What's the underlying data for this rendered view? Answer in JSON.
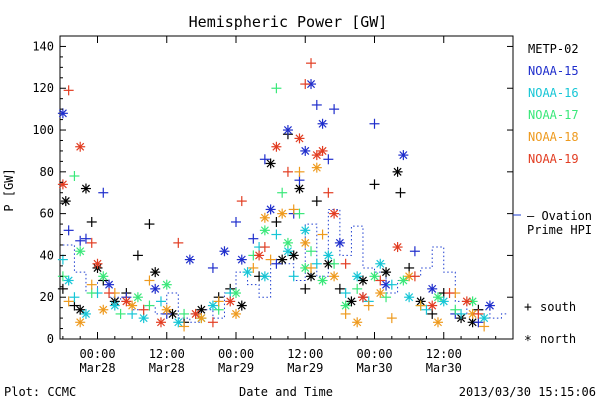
{
  "chart_data": {
    "type": "scatter",
    "title": "Hemispheric Power [GW]",
    "xlabel": "Date and Time",
    "ylabel": "P [GW]",
    "x_unit": "hours relative to 2013-03-28 00:00 UT",
    "xlim": [
      -6.5,
      72
    ],
    "ylim": [
      0,
      145
    ],
    "y_ticks": [
      0,
      20,
      40,
      60,
      80,
      100,
      120,
      140
    ],
    "x_ticks": [
      {
        "x": 0,
        "line1": "00:00",
        "line2": "Mar28"
      },
      {
        "x": 12,
        "line1": "12:00",
        "line2": "Mar28"
      },
      {
        "x": 24,
        "line1": "00:00",
        "line2": "Mar29"
      },
      {
        "x": 36,
        "line1": "12:00",
        "line2": "Mar29"
      },
      {
        "x": 48,
        "line1": "00:00",
        "line2": "Mar30"
      },
      {
        "x": 60,
        "line1": "12:00",
        "line2": "Mar30"
      }
    ],
    "legend": {
      "placement": "right",
      "satellites": [
        {
          "name": "METP-02",
          "color": "#000000"
        },
        {
          "name": "NOAA-15",
          "color": "#1f2ecc"
        },
        {
          "name": "NOAA-16",
          "color": "#17c6d6"
        },
        {
          "name": "NOAA-17",
          "color": "#3ae87a"
        },
        {
          "name": "NOAA-18",
          "color": "#ee9a1e"
        },
        {
          "name": "NOAA-19",
          "color": "#e23d22"
        }
      ],
      "ovation_line1": "— Ovation",
      "ovation_line2": "Prime HPI",
      "ovation_color": "#1f3fd0",
      "south_label": "south",
      "north_label": "north"
    },
    "ovation": {
      "x": [
        -6,
        -4,
        -2,
        0,
        2,
        4,
        6,
        8,
        10,
        12,
        14,
        16,
        18,
        20,
        22,
        24,
        26,
        28,
        30,
        32,
        34,
        36,
        38,
        40,
        42,
        44,
        46,
        48,
        50,
        52,
        54,
        56,
        58,
        60,
        62,
        64,
        66,
        68,
        70
      ],
      "y": [
        45,
        32,
        22,
        28,
        20,
        18,
        14,
        16,
        12,
        22,
        10,
        8,
        14,
        10,
        22,
        32,
        26,
        20,
        38,
        36,
        28,
        55,
        30,
        62,
        40,
        54,
        34,
        32,
        22,
        28,
        30,
        34,
        44,
        32,
        18,
        12,
        14,
        10,
        12
      ]
    },
    "series": [
      {
        "name": "METP-02",
        "color": "#000000",
        "points": [
          [
            -6,
            24,
            "s"
          ],
          [
            -5.5,
            66,
            "n"
          ],
          [
            -4,
            16,
            "s"
          ],
          [
            -3,
            14,
            "n"
          ],
          [
            -2,
            72,
            "n"
          ],
          [
            -1,
            56,
            "s"
          ],
          [
            0,
            34,
            "n"
          ],
          [
            1,
            28,
            "s"
          ],
          [
            3,
            18,
            "n"
          ],
          [
            5,
            22,
            "s"
          ],
          [
            7,
            40,
            "s"
          ],
          [
            9,
            55,
            "s"
          ],
          [
            10,
            32,
            "n"
          ],
          [
            13,
            12,
            "n"
          ],
          [
            15,
            8,
            "s"
          ],
          [
            18,
            14,
            "n"
          ],
          [
            21,
            20,
            "s"
          ],
          [
            23,
            24,
            "s"
          ],
          [
            25,
            16,
            "n"
          ],
          [
            28,
            30,
            "s"
          ],
          [
            30,
            84,
            "n"
          ],
          [
            31,
            56,
            "s"
          ],
          [
            32,
            38,
            "n"
          ],
          [
            33,
            98,
            "s"
          ],
          [
            34,
            40,
            "n"
          ],
          [
            35,
            72,
            "n"
          ],
          [
            36,
            24,
            "s"
          ],
          [
            37,
            30,
            "n"
          ],
          [
            38,
            66,
            "s"
          ],
          [
            40,
            36,
            "n"
          ],
          [
            42,
            24,
            "s"
          ],
          [
            44,
            18,
            "n"
          ],
          [
            46,
            28,
            "n"
          ],
          [
            48,
            74,
            "s"
          ],
          [
            50,
            32,
            "n"
          ],
          [
            52,
            80,
            "n"
          ],
          [
            52.5,
            70,
            "s"
          ],
          [
            54,
            34,
            "s"
          ],
          [
            56,
            18,
            "n"
          ],
          [
            58,
            12,
            "s"
          ],
          [
            60,
            22,
            "s"
          ],
          [
            63,
            10,
            "n"
          ],
          [
            65,
            8,
            "n"
          ],
          [
            66,
            14,
            "s"
          ]
        ]
      },
      {
        "name": "NOAA-15",
        "color": "#1f2ecc",
        "points": [
          [
            -6,
            108,
            "n"
          ],
          [
            -5,
            52,
            "s"
          ],
          [
            -3,
            47,
            "s"
          ],
          [
            -2,
            48,
            "s"
          ],
          [
            1,
            70,
            "s"
          ],
          [
            2,
            26,
            "n"
          ],
          [
            5,
            20,
            "s"
          ],
          [
            10,
            24,
            "n"
          ],
          [
            12,
            12,
            "s"
          ],
          [
            16,
            38,
            "n"
          ],
          [
            20,
            34,
            "s"
          ],
          [
            22,
            42,
            "n"
          ],
          [
            24,
            56,
            "s"
          ],
          [
            25,
            38,
            "n"
          ],
          [
            27,
            48,
            "s"
          ],
          [
            29,
            86,
            "s"
          ],
          [
            30,
            62,
            "n"
          ],
          [
            31,
            36,
            "s"
          ],
          [
            33,
            100,
            "n"
          ],
          [
            34,
            60,
            "s"
          ],
          [
            35,
            76,
            "s"
          ],
          [
            36,
            90,
            "n"
          ],
          [
            37,
            122,
            "n"
          ],
          [
            38,
            112,
            "s"
          ],
          [
            39,
            103,
            "n"
          ],
          [
            40,
            86,
            "s"
          ],
          [
            41,
            110,
            "s"
          ],
          [
            42,
            46,
            "n"
          ],
          [
            46,
            20,
            "s"
          ],
          [
            48,
            103,
            "s"
          ],
          [
            50,
            26,
            "n"
          ],
          [
            53,
            88,
            "n"
          ],
          [
            55,
            42,
            "s"
          ],
          [
            58,
            24,
            "n"
          ],
          [
            62,
            12,
            "s"
          ],
          [
            66,
            8,
            "s"
          ],
          [
            68,
            16,
            "n"
          ]
        ]
      },
      {
        "name": "NOAA-16",
        "color": "#17c6d6",
        "points": [
          [
            -6,
            38,
            "s"
          ],
          [
            -5,
            28,
            "n"
          ],
          [
            -4,
            20,
            "s"
          ],
          [
            -2,
            12,
            "n"
          ],
          [
            0,
            22,
            "s"
          ],
          [
            3,
            16,
            "n"
          ],
          [
            6,
            12,
            "s"
          ],
          [
            8,
            10,
            "n"
          ],
          [
            11,
            18,
            "s"
          ],
          [
            14,
            8,
            "n"
          ],
          [
            17,
            12,
            "s"
          ],
          [
            20,
            16,
            "n"
          ],
          [
            23,
            22,
            "s"
          ],
          [
            26,
            32,
            "n"
          ],
          [
            28,
            44,
            "s"
          ],
          [
            29,
            30,
            "n"
          ],
          [
            31,
            50,
            "s"
          ],
          [
            33,
            42,
            "n"
          ],
          [
            34,
            30,
            "s"
          ],
          [
            36,
            52,
            "n"
          ],
          [
            38,
            36,
            "s"
          ],
          [
            40,
            40,
            "n"
          ],
          [
            43,
            22,
            "s"
          ],
          [
            45,
            30,
            "n"
          ],
          [
            47,
            18,
            "s"
          ],
          [
            49,
            36,
            "n"
          ],
          [
            51,
            26,
            "s"
          ],
          [
            54,
            20,
            "n"
          ],
          [
            57,
            14,
            "s"
          ],
          [
            60,
            18,
            "n"
          ],
          [
            63,
            12,
            "s"
          ],
          [
            67,
            10,
            "n"
          ]
        ]
      },
      {
        "name": "NOAA-17",
        "color": "#3ae87a",
        "points": [
          [
            -6,
            30,
            "s"
          ],
          [
            -4,
            78,
            "s"
          ],
          [
            -3,
            42,
            "n"
          ],
          [
            -1,
            22,
            "s"
          ],
          [
            1,
            30,
            "n"
          ],
          [
            4,
            12,
            "s"
          ],
          [
            7,
            20,
            "n"
          ],
          [
            9,
            16,
            "s"
          ],
          [
            12,
            26,
            "n"
          ],
          [
            15,
            12,
            "s"
          ],
          [
            18,
            10,
            "n"
          ],
          [
            21,
            14,
            "s"
          ],
          [
            24,
            22,
            "n"
          ],
          [
            27,
            40,
            "s"
          ],
          [
            29,
            52,
            "n"
          ],
          [
            31,
            120,
            "s"
          ],
          [
            32,
            70,
            "s"
          ],
          [
            33,
            46,
            "n"
          ],
          [
            35,
            60,
            "s"
          ],
          [
            36,
            34,
            "n"
          ],
          [
            37,
            42,
            "s"
          ],
          [
            39,
            28,
            "n"
          ],
          [
            41,
            36,
            "s"
          ],
          [
            43,
            16,
            "n"
          ],
          [
            45,
            24,
            "s"
          ],
          [
            48,
            30,
            "n"
          ],
          [
            50,
            20,
            "s"
          ],
          [
            53,
            28,
            "n"
          ],
          [
            56,
            16,
            "s"
          ],
          [
            59,
            20,
            "n"
          ],
          [
            62,
            14,
            "s"
          ],
          [
            65,
            18,
            "n"
          ]
        ]
      },
      {
        "name": "NOAA-18",
        "color": "#ee9a1e",
        "points": [
          [
            -5,
            18,
            "s"
          ],
          [
            -3,
            8,
            "n"
          ],
          [
            -1,
            26,
            "s"
          ],
          [
            1,
            14,
            "n"
          ],
          [
            3,
            22,
            "s"
          ],
          [
            6,
            16,
            "n"
          ],
          [
            9,
            28,
            "s"
          ],
          [
            12,
            14,
            "n"
          ],
          [
            15,
            6,
            "s"
          ],
          [
            18,
            10,
            "n"
          ],
          [
            21,
            18,
            "s"
          ],
          [
            24,
            12,
            "n"
          ],
          [
            27,
            34,
            "s"
          ],
          [
            29,
            58,
            "n"
          ],
          [
            30,
            38,
            "s"
          ],
          [
            32,
            60,
            "n"
          ],
          [
            34,
            62,
            "s"
          ],
          [
            35,
            80,
            "s"
          ],
          [
            36,
            46,
            "n"
          ],
          [
            37,
            34,
            "s"
          ],
          [
            38,
            82,
            "n"
          ],
          [
            39,
            50,
            "s"
          ],
          [
            41,
            30,
            "n"
          ],
          [
            43,
            12,
            "s"
          ],
          [
            45,
            8,
            "n"
          ],
          [
            47,
            16,
            "s"
          ],
          [
            49,
            22,
            "n"
          ],
          [
            51,
            10,
            "s"
          ],
          [
            54,
            30,
            "n"
          ],
          [
            56,
            16,
            "s"
          ],
          [
            59,
            8,
            "n"
          ],
          [
            62,
            22,
            "s"
          ],
          [
            65,
            12,
            "n"
          ],
          [
            67,
            6,
            "s"
          ]
        ]
      },
      {
        "name": "NOAA-19",
        "color": "#e23d22",
        "points": [
          [
            -6,
            74,
            "n"
          ],
          [
            -5,
            119,
            "s"
          ],
          [
            -3,
            92,
            "n"
          ],
          [
            -1,
            46,
            "s"
          ],
          [
            0,
            36,
            "n"
          ],
          [
            2,
            22,
            "s"
          ],
          [
            5,
            18,
            "n"
          ],
          [
            8,
            14,
            "s"
          ],
          [
            11,
            8,
            "n"
          ],
          [
            14,
            46,
            "s"
          ],
          [
            17,
            12,
            "n"
          ],
          [
            20,
            8,
            "s"
          ],
          [
            23,
            18,
            "n"
          ],
          [
            25,
            66,
            "s"
          ],
          [
            28,
            40,
            "n"
          ],
          [
            29,
            44,
            "s"
          ],
          [
            31,
            92,
            "n"
          ],
          [
            33,
            80,
            "s"
          ],
          [
            35,
            96,
            "n"
          ],
          [
            36,
            122,
            "s"
          ],
          [
            37,
            132,
            "s"
          ],
          [
            38,
            88,
            "n"
          ],
          [
            39,
            90,
            "n"
          ],
          [
            40,
            70,
            "s"
          ],
          [
            41,
            60,
            "n"
          ],
          [
            43,
            36,
            "s"
          ],
          [
            46,
            20,
            "n"
          ],
          [
            49,
            28,
            "s"
          ],
          [
            52,
            44,
            "n"
          ],
          [
            55,
            30,
            "s"
          ],
          [
            58,
            16,
            "n"
          ],
          [
            61,
            22,
            "s"
          ],
          [
            64,
            18,
            "n"
          ],
          [
            66,
            12,
            "s"
          ]
        ]
      }
    ]
  },
  "footer": {
    "plot_credit": "Plot: CCMC",
    "timestamp": "2013/03/30 15:15:06"
  }
}
